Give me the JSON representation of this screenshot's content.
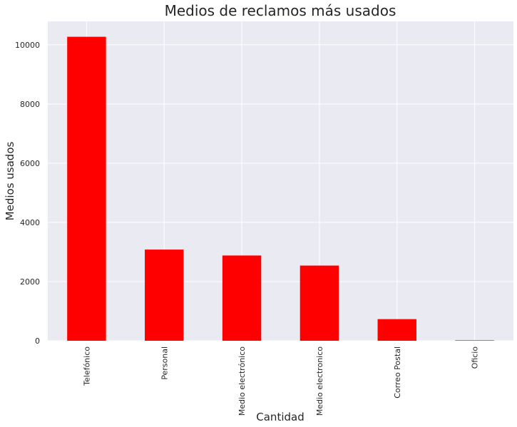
{
  "chart_data": {
    "type": "bar",
    "title": "Medios de reclamos más usados",
    "xlabel": "Cantidad",
    "ylabel": "Medios usados",
    "categories": [
      "Telefónico",
      "Personal",
      "Medio electrónico",
      "Medio electronico",
      "Correo Postal",
      "Oficio"
    ],
    "values": [
      10270,
      3080,
      2880,
      2540,
      730,
      15
    ],
    "ylim": [
      0,
      10790
    ],
    "yticks": [
      0,
      2000,
      4000,
      6000,
      8000,
      10000
    ],
    "grid": true,
    "legend": "none",
    "colors": {
      "bar": "#ff0000",
      "background": "#eaeaf2",
      "grid": "#ffffff"
    }
  }
}
